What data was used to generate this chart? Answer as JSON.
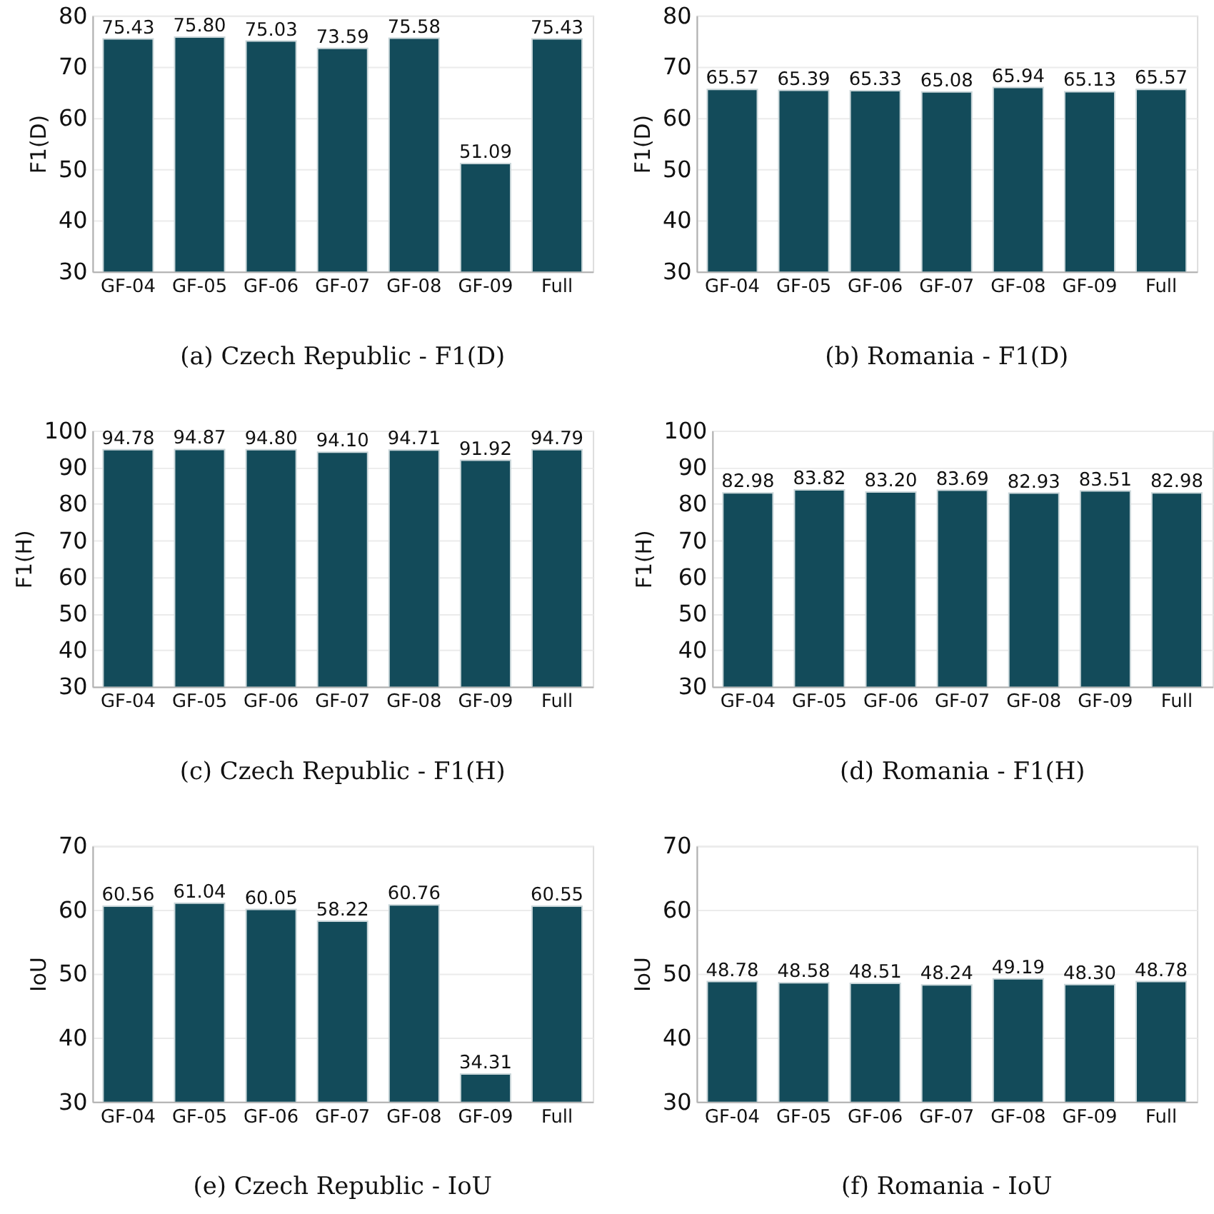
{
  "chart_data": [
    {
      "type": "bar",
      "categories": [
        "GF-04",
        "GF-05",
        "GF-06",
        "GF-07",
        "GF-08",
        "GF-09",
        "Full"
      ],
      "values": [
        75.43,
        75.8,
        75.03,
        73.59,
        75.58,
        51.09,
        75.43
      ],
      "value_labels": [
        "75.43",
        "75.80",
        "75.03",
        "73.59",
        "75.58",
        "51.09",
        "75.43"
      ],
      "color": "#134b5a",
      "ylabel": "F1(D)",
      "ylim": [
        30,
        80
      ],
      "yticks": [
        30,
        40,
        50,
        60,
        70,
        80
      ],
      "grid": "y",
      "annotations": [
        "(a) Czech Republic - F1(D)"
      ]
    },
    {
      "type": "bar",
      "categories": [
        "GF-04",
        "GF-05",
        "GF-06",
        "GF-07",
        "GF-08",
        "GF-09",
        "Full"
      ],
      "values": [
        65.57,
        65.39,
        65.33,
        65.08,
        65.94,
        65.13,
        65.57
      ],
      "value_labels": [
        "65.57",
        "65.39",
        "65.33",
        "65.08",
        "65.94",
        "65.13",
        "65.57"
      ],
      "color": "#134b5a",
      "ylabel": "F1(D)",
      "ylim": [
        30,
        80
      ],
      "yticks": [
        30,
        40,
        50,
        60,
        70,
        80
      ],
      "grid": "y",
      "annotations": [
        "(b) Romania - F1(D)"
      ]
    },
    {
      "type": "bar",
      "categories": [
        "GF-04",
        "GF-05",
        "GF-06",
        "GF-07",
        "GF-08",
        "GF-09",
        "Full"
      ],
      "values": [
        94.78,
        94.87,
        94.8,
        94.1,
        94.71,
        91.92,
        94.79
      ],
      "value_labels": [
        "94.78",
        "94.87",
        "94.80",
        "94.10",
        "94.71",
        "91.92",
        "94.79"
      ],
      "color": "#134b5a",
      "ylabel": "F1(H)",
      "ylim": [
        30,
        100
      ],
      "yticks": [
        30,
        40,
        50,
        60,
        70,
        80,
        90,
        100
      ],
      "grid": "y",
      "annotations": [
        "(c) Czech Republic - F1(H)"
      ]
    },
    {
      "type": "bar",
      "categories": [
        "GF-04",
        "GF-05",
        "GF-06",
        "GF-07",
        "GF-08",
        "GF-09",
        "Full"
      ],
      "values": [
        82.98,
        83.82,
        83.2,
        83.69,
        82.93,
        83.51,
        82.98
      ],
      "value_labels": [
        "82.98",
        "83.82",
        "83.20",
        "83.69",
        "82.93",
        "83.51",
        "82.98"
      ],
      "color": "#134b5a",
      "ylabel": "F1(H)",
      "ylim": [
        30,
        100
      ],
      "yticks": [
        30,
        40,
        50,
        60,
        70,
        80,
        90,
        100
      ],
      "grid": "y",
      "annotations": [
        "(d) Romania - F1(H)"
      ]
    },
    {
      "type": "bar",
      "categories": [
        "GF-04",
        "GF-05",
        "GF-06",
        "GF-07",
        "GF-08",
        "GF-09",
        "Full"
      ],
      "values": [
        60.56,
        61.04,
        60.05,
        58.22,
        60.76,
        34.31,
        60.55
      ],
      "value_labels": [
        "60.56",
        "61.04",
        "60.05",
        "58.22",
        "60.76",
        "34.31",
        "60.55"
      ],
      "color": "#134b5a",
      "ylabel": "IoU",
      "ylim": [
        30,
        70
      ],
      "yticks": [
        30,
        40,
        50,
        60,
        70
      ],
      "grid": "y",
      "annotations": [
        "(e) Czech Republic - IoU"
      ]
    },
    {
      "type": "bar",
      "categories": [
        "GF-04",
        "GF-05",
        "GF-06",
        "GF-07",
        "GF-08",
        "GF-09",
        "Full"
      ],
      "values": [
        48.78,
        48.58,
        48.51,
        48.24,
        49.19,
        48.3,
        48.78
      ],
      "value_labels": [
        "48.78",
        "48.58",
        "48.51",
        "48.24",
        "49.19",
        "48.30",
        "48.78"
      ],
      "color": "#134b5a",
      "ylabel": "IoU",
      "ylim": [
        30,
        70
      ],
      "yticks": [
        30,
        40,
        50,
        60,
        70
      ],
      "grid": "y",
      "annotations": [
        "(f) Romania - IoU"
      ]
    }
  ]
}
